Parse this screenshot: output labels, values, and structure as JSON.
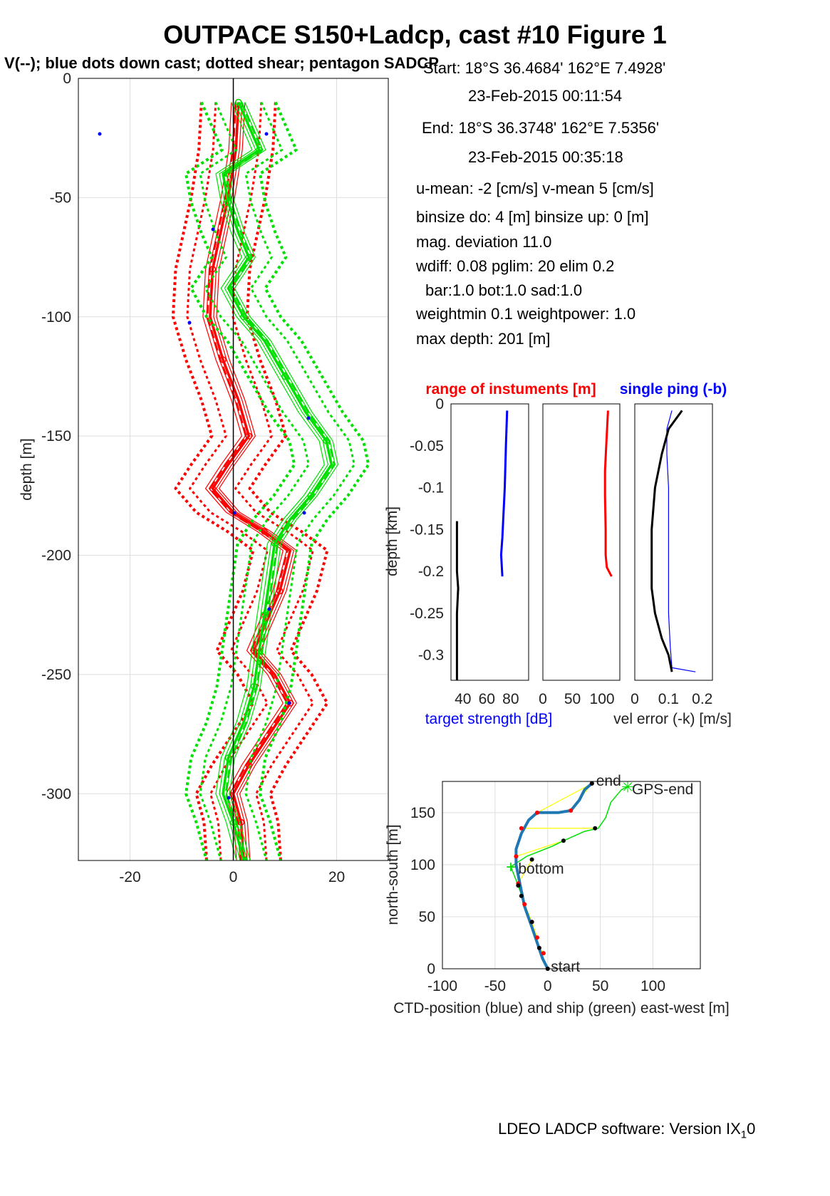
{
  "title": "OUTPACE S150+Ladcp, cast #10  Figure 1",
  "subtitle": "V(--); blue dots down cast; dotted shear; pentagon SADCP",
  "info": {
    "start_pos": "Start:  18°S 36.4684'     162°E  7.4928'",
    "start_time": "23-Feb-2015 00:11:54",
    "end_pos": "End:   18°S 36.3748'     162°E  7.5356'",
    "end_time": "23-Feb-2015 00:35:18",
    "means": "u-mean:  -2 [cm/s]    v-mean   5 [cm/s]",
    "binsize": "binsize do: 4 [m]  binsize up:  0 [m]",
    "magdev": "mag. deviation 11.0",
    "wdiff": "wdiff: 0.08  pglim: 20  elim 0.2",
    "bar": "bar:1.0 bot:1.0 sad:1.0",
    "weight": "weightmin 0.1  weightpower: 1.0",
    "maxdepth": "max depth: 201 [m]"
  },
  "footer": {
    "text": "LDEO LADCP software: Version IX",
    "sub": "1",
    "suffix": "0"
  },
  "colors": {
    "u": "#ff0000",
    "v": "#00e000",
    "ts": "#0000ff",
    "err": "#000000",
    "ctd": "#1f77b4",
    "link": "#ffff00"
  },
  "chart_data": [
    {
      "type": "line",
      "ylabel": "depth [m]",
      "xlabel": "",
      "xlim": [
        -30,
        30
      ],
      "ylim": [
        -328,
        0
      ],
      "xticks": [
        -20,
        0,
        20
      ],
      "yticks": [
        0,
        -50,
        -100,
        -150,
        -200,
        -250,
        -300
      ],
      "grid": true,
      "series": [
        {
          "color": "#ff0000",
          "points": [
            [
              1,
              -10
            ],
            [
              0.5,
              -30
            ],
            [
              -1,
              -50
            ],
            [
              -2.5,
              -65
            ],
            [
              -4,
              -80
            ],
            [
              -4.5,
              -100
            ],
            [
              -2,
              -118
            ],
            [
              1,
              -135
            ],
            [
              3,
              -150
            ],
            [
              -1,
              -162
            ],
            [
              -4,
              -172
            ],
            [
              0,
              -182
            ],
            [
              6,
              -190
            ],
            [
              11,
              -198
            ],
            [
              9,
              -215
            ],
            [
              6,
              -230
            ],
            [
              4,
              -240
            ],
            [
              8,
              -250
            ],
            [
              11,
              -262
            ],
            [
              7,
              -275
            ],
            [
              3,
              -288
            ],
            [
              0,
              -300
            ],
            [
              1.5,
              -312
            ],
            [
              2,
              -328
            ]
          ]
        },
        {
          "color": "#00e000",
          "points": [
            [
              1,
              -10
            ],
            [
              3,
              -20
            ],
            [
              5,
              -30
            ],
            [
              -2,
              -40
            ],
            [
              -1,
              -52
            ],
            [
              1,
              -65
            ],
            [
              3,
              -75
            ],
            [
              -1,
              -88
            ],
            [
              2,
              -100
            ],
            [
              6,
              -110
            ],
            [
              10,
              -125
            ],
            [
              14,
              -140
            ],
            [
              18,
              -152
            ],
            [
              19,
              -162
            ],
            [
              15,
              -175
            ],
            [
              11,
              -185
            ],
            [
              8,
              -195
            ],
            [
              7,
              -210
            ],
            [
              6,
              -225
            ],
            [
              5,
              -240
            ],
            [
              4,
              -255
            ],
            [
              2,
              -270
            ],
            [
              -1,
              -285
            ],
            [
              -2,
              -300
            ],
            [
              0,
              -312
            ],
            [
              2,
              -328
            ]
          ]
        }
      ]
    },
    {
      "type": "line",
      "title": "range of instuments [m]",
      "ylabel": "depth [km]",
      "xlabel": "target strength [dB]",
      "xticks": [
        40,
        60,
        80
      ],
      "xlim": [
        30,
        95
      ],
      "ylim": [
        -0.33,
        0
      ],
      "yticks": [
        0,
        -0.05,
        -0.1,
        -0.15,
        -0.2,
        -0.25,
        -0.3
      ],
      "series": [
        {
          "color": "#0000ff",
          "x": [
            77,
            76,
            75,
            74,
            73,
            72,
            73
          ],
          "y": [
            -0.008,
            -0.05,
            -0.1,
            -0.13,
            -0.16,
            -0.18,
            -0.206
          ]
        },
        {
          "color": "#000000",
          "x": [
            35,
            35,
            36,
            35,
            35,
            35
          ],
          "y": [
            -0.14,
            -0.2,
            -0.22,
            -0.25,
            -0.3,
            -0.33
          ]
        }
      ]
    },
    {
      "type": "line",
      "xlabel": "",
      "xticks": [
        0,
        50,
        100
      ],
      "xlim": [
        0,
        130
      ],
      "ylim": [
        -0.33,
        0
      ],
      "series": [
        {
          "color": "#ff0000",
          "x": [
            110,
            107,
            105,
            105,
            106,
            106,
            108,
            116
          ],
          "y": [
            -0.008,
            -0.05,
            -0.08,
            -0.11,
            -0.15,
            -0.18,
            -0.195,
            -0.206
          ]
        }
      ]
    },
    {
      "type": "line",
      "title": "single ping (-b)",
      "xlabel": "vel error (-k) [m/s]",
      "xticks": [
        0,
        0.1,
        0.2
      ],
      "xlim": [
        0,
        0.23
      ],
      "ylim": [
        -0.33,
        0
      ],
      "series": [
        {
          "color": "#0000ff",
          "x": [
            0.11,
            0.095,
            0.095,
            0.1,
            0.1,
            0.1,
            0.1,
            0.105,
            0.11,
            0.18
          ],
          "y": [
            -0.008,
            -0.03,
            -0.06,
            -0.1,
            -0.15,
            -0.2,
            -0.25,
            -0.29,
            -0.315,
            -0.32
          ]
        },
        {
          "color": "#000000",
          "x": [
            0.14,
            0.1,
            0.08,
            0.06,
            0.05,
            0.05,
            0.05,
            0.06,
            0.08,
            0.1,
            0.11
          ],
          "y": [
            -0.008,
            -0.03,
            -0.06,
            -0.1,
            -0.15,
            -0.2,
            -0.22,
            -0.25,
            -0.28,
            -0.3,
            -0.32
          ]
        }
      ]
    },
    {
      "type": "line",
      "xlabel": "CTD-position (blue) and ship (green) east-west [m]",
      "ylabel": "north-south [m]",
      "xlim": [
        -100,
        145
      ],
      "ylim": [
        0,
        180
      ],
      "xticks": [
        -100,
        -50,
        0,
        50,
        100
      ],
      "yticks": [
        0,
        50,
        100,
        150
      ],
      "grid": true,
      "labels": {
        "start": "start",
        "end": "end",
        "gps_end": "GPS-end",
        "bottom": "bottom"
      },
      "ctd_track": [
        [
          0,
          0
        ],
        [
          -5,
          10
        ],
        [
          -10,
          25
        ],
        [
          -15,
          40
        ],
        [
          -22,
          60
        ],
        [
          -26,
          80
        ],
        [
          -30,
          100
        ],
        [
          -30,
          115
        ],
        [
          -25,
          130
        ],
        [
          -18,
          143
        ],
        [
          -10,
          150
        ],
        [
          10,
          150
        ],
        [
          22,
          152
        ],
        [
          30,
          162
        ],
        [
          35,
          172
        ],
        [
          42,
          178
        ]
      ],
      "ship_track": [
        [
          0,
          0
        ],
        [
          -8,
          20
        ],
        [
          -18,
          50
        ],
        [
          -28,
          80
        ],
        [
          -35,
          98
        ],
        [
          -20,
          108
        ],
        [
          5,
          118
        ],
        [
          15,
          123
        ],
        [
          35,
          132
        ],
        [
          48,
          135
        ],
        [
          55,
          145
        ],
        [
          60,
          160
        ],
        [
          70,
          172
        ],
        [
          76,
          175
        ]
      ],
      "ctd_marks": [
        [
          0,
          0
        ],
        [
          -4,
          15
        ],
        [
          -10,
          30
        ],
        [
          -15,
          45
        ],
        [
          -22,
          62
        ],
        [
          -28,
          82
        ],
        [
          -30,
          108
        ],
        [
          -25,
          135
        ],
        [
          -10,
          150
        ],
        [
          22,
          152
        ],
        [
          42,
          178
        ]
      ],
      "ship_marks": [
        [
          0,
          0
        ],
        [
          -8,
          20
        ],
        [
          -15,
          45
        ],
        [
          -25,
          70
        ],
        [
          -28,
          80
        ],
        [
          -15,
          105
        ],
        [
          15,
          123
        ],
        [
          45,
          135
        ],
        [
          42,
          178
        ]
      ]
    }
  ]
}
